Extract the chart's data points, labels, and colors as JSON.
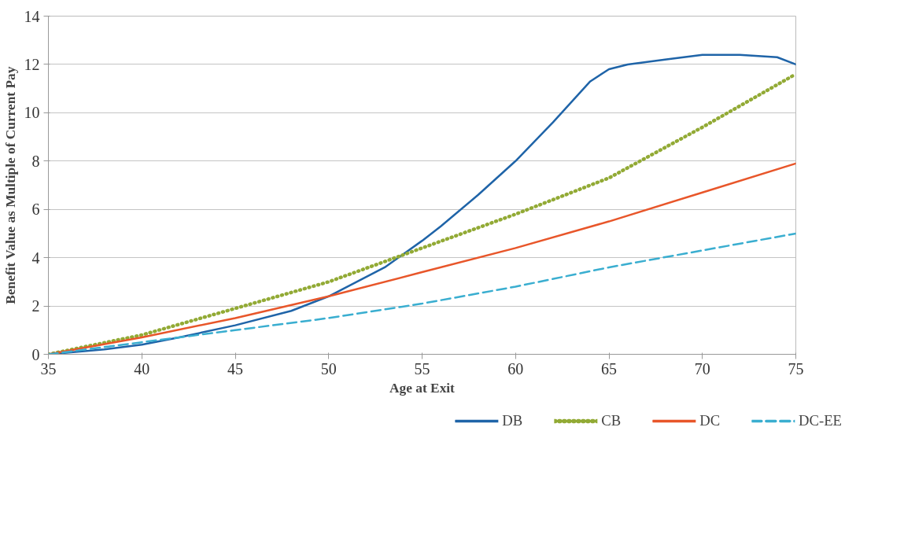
{
  "chart_data": {
    "type": "line",
    "xlabel": "Age at Exit",
    "ylabel": "Benefit Value as Multiple of Current Pay",
    "xlim": [
      35,
      75
    ],
    "xticks": [
      35,
      40,
      45,
      50,
      55,
      60,
      65,
      70,
      75
    ],
    "ylim": [
      0,
      14
    ],
    "yticks": [
      0,
      2,
      4,
      6,
      8,
      10,
      12,
      14
    ],
    "grid": "y",
    "legend": "bottom",
    "series": [
      {
        "name": "DB",
        "color": "#1f64a8",
        "line_style": "solid",
        "x": [
          35,
          38,
          40,
          42,
          45,
          48,
          50,
          53,
          55,
          56,
          58,
          60,
          62,
          64,
          65,
          66,
          68,
          70,
          72,
          74,
          75
        ],
        "values": [
          0,
          0.2,
          0.4,
          0.7,
          1.2,
          1.8,
          2.4,
          3.6,
          4.7,
          5.3,
          6.6,
          8.0,
          9.6,
          11.3,
          11.8,
          12.0,
          12.2,
          12.4,
          12.4,
          12.3,
          12.0
        ]
      },
      {
        "name": "CB",
        "color": "#92aa35",
        "line_style": "dotted",
        "x": [
          35,
          40,
          45,
          50,
          55,
          60,
          65,
          70,
          75
        ],
        "values": [
          0,
          0.8,
          1.9,
          3.0,
          4.4,
          5.8,
          7.3,
          9.4,
          11.6
        ]
      },
      {
        "name": "DC",
        "color": "#e8562a",
        "line_style": "solid",
        "x": [
          35,
          40,
          45,
          50,
          55,
          60,
          65,
          70,
          75
        ],
        "values": [
          0,
          0.7,
          1.5,
          2.4,
          3.4,
          4.4,
          5.5,
          6.7,
          7.9
        ]
      },
      {
        "name": "DC-EE",
        "color": "#3aaed0",
        "line_style": "dashed",
        "x": [
          35,
          40,
          45,
          50,
          55,
          60,
          65,
          70,
          75
        ],
        "values": [
          0,
          0.5,
          1.0,
          1.5,
          2.1,
          2.8,
          3.6,
          4.3,
          5.0
        ]
      }
    ]
  }
}
